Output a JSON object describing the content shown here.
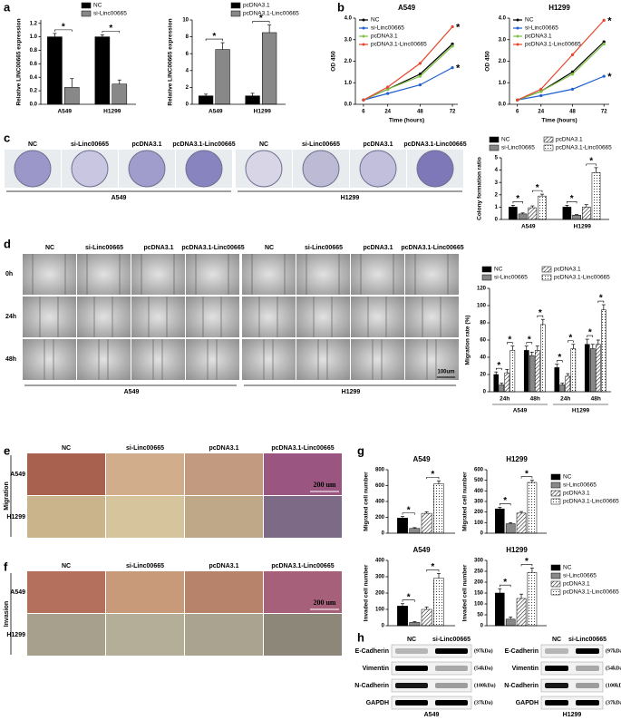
{
  "panel_labels": [
    "a",
    "b",
    "c",
    "d",
    "e",
    "f",
    "g",
    "h"
  ],
  "chart_data": [
    {
      "type": "bar",
      "y_label": "Relative LINC00665 expression",
      "categories": [
        "A549",
        "H1299"
      ],
      "series": [
        {
          "name": "NC",
          "color": "#000000",
          "values": [
            1.0,
            1.0
          ],
          "errors": [
            0.05,
            0.03
          ]
        },
        {
          "name": "si-Linc00665",
          "color": "#888888",
          "values": [
            0.25,
            0.3
          ],
          "errors": [
            0.13,
            0.06
          ]
        }
      ],
      "ylim": [
        0,
        1.25
      ],
      "yticks": [
        {
          "value": 0,
          "label": "0.0"
        },
        {
          "value": 0.2,
          "label": "0.2"
        },
        {
          "value": 0.4,
          "label": "0.4"
        },
        {
          "value": 0.6,
          "label": "0.6"
        },
        {
          "value": 0.8,
          "label": "0.8"
        },
        {
          "value": 1,
          "label": "1.0"
        },
        {
          "value": 1.2,
          "label": "1.2"
        }
      ],
      "annotations": [
        {
          "text": "*",
          "category": 0,
          "series": [
            0,
            1
          ]
        },
        {
          "text": "*",
          "category": 1,
          "series": [
            0,
            1
          ]
        }
      ]
    },
    {
      "type": "bar",
      "y_label": "Relative LINC00665 expression",
      "categories": [
        "A549",
        "H1299"
      ],
      "series": [
        {
          "name": "pcDNA3.1",
          "color": "#000000",
          "values": [
            1,
            1
          ],
          "errors": [
            0.2,
            0.3
          ]
        },
        {
          "name": "pcDNA3.1-Linc00665",
          "color": "#888888",
          "values": [
            6.5,
            8.5
          ],
          "errors": [
            0.8,
            0.9
          ]
        }
      ],
      "ylim": [
        0,
        10
      ],
      "yticks": [
        0,
        2,
        4,
        6,
        8,
        10
      ],
      "annotations": [
        {
          "text": "*",
          "category": 0,
          "series": [
            0,
            1
          ]
        },
        {
          "text": "*",
          "category": 1,
          "series": [
            0,
            1
          ]
        }
      ]
    },
    {
      "type": "line",
      "title": "A549",
      "x_label": "Time (hours)",
      "y_label": "OD 450",
      "x": [
        6,
        24,
        48,
        72
      ],
      "series": [
        {
          "name": "NC",
          "color": "#000000",
          "values": [
            0.2,
            0.7,
            1.4,
            2.8
          ]
        },
        {
          "name": "si-Linc00665",
          "color": "#1f5fd0",
          "values": [
            0.2,
            0.5,
            0.9,
            1.7
          ]
        },
        {
          "name": "pcDNA3.1",
          "color": "#7dc242",
          "values": [
            0.2,
            0.7,
            1.3,
            2.7
          ]
        },
        {
          "name": "pcDNA3.1-Linc00665",
          "color": "#e8452c",
          "values": [
            0.2,
            0.8,
            1.9,
            3.6
          ]
        }
      ],
      "xlim": [
        0,
        76
      ],
      "xticks": [
        6,
        24,
        48,
        72
      ],
      "ylim": [
        0,
        4
      ],
      "yticks": [
        {
          "value": 0,
          "label": "0.0"
        },
        {
          "value": 1,
          "label": "1.0"
        },
        {
          "value": 2,
          "label": "2.0"
        },
        {
          "value": 3,
          "label": "3.0"
        },
        {
          "value": 4,
          "label": "4.0"
        }
      ],
      "annotations": [
        {
          "text": "*",
          "series": 1
        },
        {
          "text": "*",
          "series": 3
        }
      ]
    },
    {
      "type": "line",
      "title": "H1299",
      "x_label": "Time (hours)",
      "y_label": "OD 450",
      "x": [
        6,
        24,
        48,
        72
      ],
      "series": [
        {
          "name": "NC",
          "color": "#000000",
          "values": [
            0.2,
            0.6,
            1.5,
            2.9
          ]
        },
        {
          "name": "si-Linc00665",
          "color": "#1f5fd0",
          "values": [
            0.2,
            0.4,
            0.7,
            1.3
          ]
        },
        {
          "name": "pcDNA3.1",
          "color": "#7dc242",
          "values": [
            0.2,
            0.6,
            1.4,
            2.8
          ]
        },
        {
          "name": "pcDNA3.1-Linc00665",
          "color": "#e8452c",
          "values": [
            0.2,
            0.7,
            2.3,
            3.9
          ]
        }
      ],
      "xlim": [
        0,
        76
      ],
      "xticks": [
        6,
        24,
        48,
        72
      ],
      "ylim": [
        0,
        4
      ],
      "yticks": [
        {
          "value": 0,
          "label": "0.0"
        },
        {
          "value": 1,
          "label": "1.0"
        },
        {
          "value": 2,
          "label": "2.0"
        },
        {
          "value": 3,
          "label": "3.0"
        },
        {
          "value": 4,
          "label": "4.0"
        }
      ],
      "annotations": [
        {
          "text": "*",
          "series": 1
        },
        {
          "text": "*",
          "series": 3
        }
      ]
    },
    {
      "type": "bar",
      "y_label": "Colony formation ratio",
      "categories": [
        "A549",
        "H1299"
      ],
      "series": [
        {
          "name": "NC",
          "color": "#000000",
          "values": [
            1.0,
            1.0
          ],
          "errors": [
            0.15,
            0.15
          ]
        },
        {
          "name": "si-Linc00665",
          "color": "#888888",
          "values": [
            0.45,
            0.35
          ],
          "errors": [
            0.08,
            0.05
          ]
        },
        {
          "name": "pcDNA3.1",
          "fill": "hatch",
          "values": [
            0.95,
            1.0
          ],
          "errors": [
            0.15,
            0.2
          ]
        },
        {
          "name": "pcDNA3.1-Linc00665",
          "fill": "dots",
          "values": [
            1.9,
            3.8
          ],
          "errors": [
            0.15,
            0.4
          ]
        }
      ],
      "ylim": [
        0,
        5
      ],
      "yticks": [
        0,
        1,
        2,
        3,
        4,
        5
      ],
      "annotations": [
        {
          "text": "*",
          "category": 0,
          "series": [
            0,
            1
          ]
        },
        {
          "text": "*",
          "category": 0,
          "series": [
            2,
            3
          ]
        },
        {
          "text": "*",
          "category": 1,
          "series": [
            0,
            1
          ]
        },
        {
          "text": "*",
          "category": 1,
          "series": [
            2,
            3
          ]
        }
      ]
    },
    {
      "type": "bar",
      "y_label": "Migration rate (%)",
      "categories": [
        "24h",
        "48h",
        "24h",
        "48h"
      ],
      "groups": [
        "A549",
        "H1299"
      ],
      "series": [
        {
          "name": "NC",
          "color": "#000000",
          "values": [
            20,
            48,
            28,
            55
          ],
          "errors": [
            3,
            5,
            4,
            6
          ]
        },
        {
          "name": "si-Linc00665",
          "color": "#888888",
          "values": [
            8,
            42,
            8,
            50
          ],
          "errors": [
            2,
            4,
            2,
            5
          ]
        },
        {
          "name": "pcDNA3.1",
          "fill": "hatch",
          "values": [
            22,
            48,
            18,
            55
          ],
          "errors": [
            4,
            5,
            3,
            5
          ]
        },
        {
          "name": "pcDNA3.1-Linc00665",
          "fill": "dots",
          "values": [
            48,
            78,
            50,
            95
          ],
          "errors": [
            5,
            6,
            5,
            6
          ]
        }
      ],
      "ylim": [
        0,
        120
      ],
      "yticks": [
        0,
        20,
        40,
        60,
        80,
        100,
        120
      ],
      "annotations": [
        {
          "text": "*",
          "category": 0,
          "series": [
            0,
            1
          ]
        },
        {
          "text": "*",
          "category": 0,
          "series": [
            2,
            3
          ]
        },
        {
          "text": "*",
          "category": 1,
          "series": [
            0,
            1
          ]
        },
        {
          "text": "*",
          "category": 1,
          "series": [
            2,
            3
          ]
        },
        {
          "text": "*",
          "category": 2,
          "series": [
            0,
            1
          ]
        },
        {
          "text": "*",
          "category": 2,
          "series": [
            2,
            3
          ]
        },
        {
          "text": "*",
          "category": 3,
          "series": [
            0,
            1
          ]
        },
        {
          "text": "*",
          "category": 3,
          "series": [
            2,
            3
          ]
        }
      ]
    },
    {
      "type": "bar",
      "title": "A549",
      "y_label": "Migrated cell number",
      "series": [
        {
          "color": "#000000",
          "values": [
            190
          ],
          "errors": [
            20
          ]
        },
        {
          "color": "#888888",
          "values": [
            60
          ],
          "errors": [
            10
          ]
        },
        {
          "fill": "hatch",
          "values": [
            250
          ],
          "errors": [
            20
          ]
        },
        {
          "fill": "dots",
          "values": [
            620
          ],
          "errors": [
            40
          ]
        }
      ],
      "ylim": [
        0,
        800
      ],
      "yticks": [
        0,
        200,
        400,
        600,
        800
      ],
      "annotations": [
        {
          "text": "*",
          "category": 0,
          "series": [
            0,
            1
          ]
        },
        {
          "text": "*",
          "category": 0,
          "series": [
            2,
            3
          ]
        }
      ]
    },
    {
      "type": "bar",
      "title": "H1299",
      "y_label": "Migrated cell number",
      "series": [
        {
          "name": "NC",
          "color": "#000000",
          "values": [
            230
          ],
          "errors": [
            15
          ]
        },
        {
          "name": "si-Linc00665",
          "color": "#888888",
          "values": [
            90
          ],
          "errors": [
            10
          ]
        },
        {
          "name": "pcDNA3.1",
          "fill": "hatch",
          "values": [
            190
          ],
          "errors": [
            15
          ]
        },
        {
          "name": "pcDNA3.1-Linc00665",
          "fill": "dots",
          "values": [
            480
          ],
          "errors": [
            20
          ]
        }
      ],
      "ylim": [
        0,
        600
      ],
      "yticks": [
        0,
        100,
        200,
        300,
        400,
        500,
        600
      ],
      "annotations": [
        {
          "text": "*",
          "category": 0,
          "series": [
            0,
            1
          ]
        },
        {
          "text": "*",
          "category": 0,
          "series": [
            2,
            3
          ]
        }
      ]
    },
    {
      "type": "bar",
      "title": "A549",
      "y_label": "Invaded cell number",
      "series": [
        {
          "color": "#000000",
          "values": [
            120
          ],
          "errors": [
            15
          ]
        },
        {
          "color": "#888888",
          "values": [
            20
          ],
          "errors": [
            5
          ]
        },
        {
          "fill": "hatch",
          "values": [
            100
          ],
          "errors": [
            15
          ]
        },
        {
          "fill": "dots",
          "values": [
            290
          ],
          "errors": [
            30
          ]
        }
      ],
      "ylim": [
        0,
        400
      ],
      "yticks": [
        0,
        100,
        200,
        300,
        400
      ],
      "annotations": [
        {
          "text": "*",
          "category": 0,
          "series": [
            0,
            1
          ]
        },
        {
          "text": "*",
          "category": 0,
          "series": [
            2,
            3
          ]
        }
      ]
    },
    {
      "type": "bar",
      "title": "H1299",
      "y_label": "Invaded cell number",
      "series": [
        {
          "name": "NC",
          "color": "#000000",
          "values": [
            150
          ],
          "errors": [
            20
          ]
        },
        {
          "name": "si-Linc00665",
          "color": "#888888",
          "values": [
            30
          ],
          "errors": [
            10
          ]
        },
        {
          "name": "pcDNA3.1",
          "fill": "hatch",
          "values": [
            125
          ],
          "errors": [
            20
          ]
        },
        {
          "name": "pcDNA3.1-Linc00665",
          "fill": "dots",
          "values": [
            245
          ],
          "errors": [
            20
          ]
        }
      ],
      "ylim": [
        0,
        300
      ],
      "yticks": [
        0,
        50,
        100,
        150,
        200,
        250,
        300
      ],
      "annotations": [
        {
          "text": "*",
          "category": 0,
          "series": [
            0,
            1
          ]
        },
        {
          "text": "*",
          "category": 0,
          "series": [
            2,
            3
          ]
        }
      ]
    }
  ],
  "colony_panel": {
    "columns": [
      "NC",
      "si-Linc00665",
      "pcDNA3.1",
      "pcDNA3.1-Linc00665"
    ],
    "groups": [
      "A549",
      "H1299"
    ]
  },
  "wound_panel": {
    "columns": [
      "NC",
      "si-Linc00665",
      "pcDNA3.1",
      "pcDNA3.1-Linc00665"
    ],
    "rows": [
      "0h",
      "24h",
      "48h"
    ],
    "groups": [
      "A549",
      "H1299"
    ],
    "scale_bar": "100um"
  },
  "migration_panel": {
    "side_label": "Migration",
    "columns": [
      "NC",
      "si-Linc00665",
      "pcDNA3.1",
      "pcDNA3.1-Linc00665"
    ],
    "rows": [
      "A549",
      "H1299"
    ],
    "scale_bar": "200 um"
  },
  "invasion_panel": {
    "side_label": "Invasion",
    "columns": [
      "NC",
      "si-Linc00665",
      "pcDNA3.1",
      "pcDNA3.1-Linc00665"
    ],
    "rows": [
      "A549",
      "H1299"
    ],
    "scale_bar": "200 um"
  },
  "blot_panel": {
    "lanes": [
      "NC",
      "si-Linc00665"
    ],
    "proteins": [
      "E-Cadherin",
      "Vimentin",
      "N-Cadherin",
      "GAPDH"
    ],
    "sizes": [
      "(97kDa)",
      "(54kDa)",
      "(100kDa)",
      "(37kDa)"
    ],
    "cells": [
      "A549",
      "H1299"
    ]
  }
}
